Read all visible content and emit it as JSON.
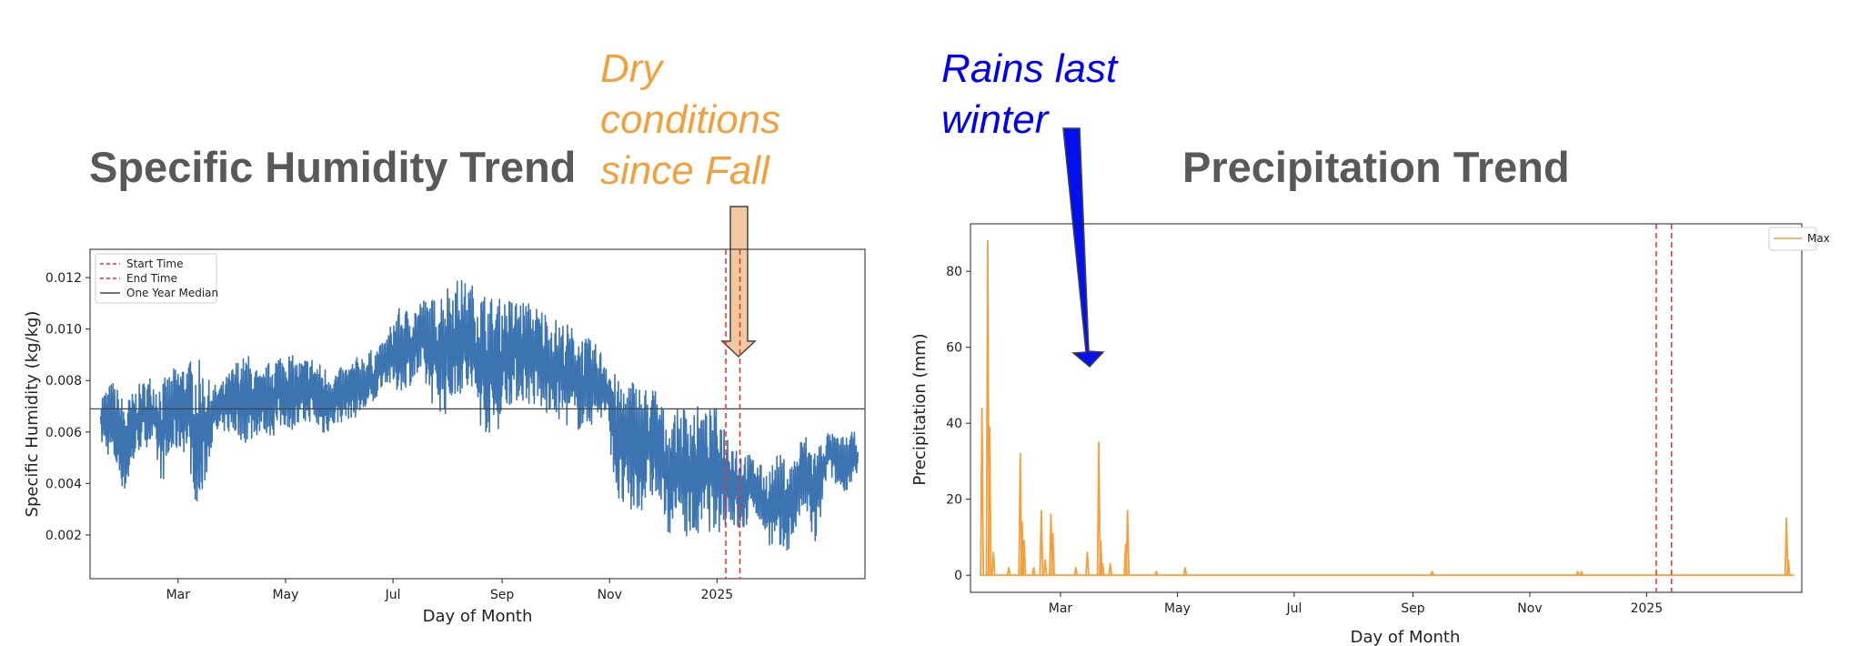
{
  "titles": {
    "left": "Specific Humidity Trend",
    "right": "Precipitation Trend"
  },
  "annotations": {
    "dry": [
      "Dry",
      "conditions",
      "since Fall"
    ],
    "rain": [
      "Rains last",
      "winter"
    ],
    "dry_color": "#f0a03c",
    "rain_color": "#0000ee"
  },
  "chart_data": [
    {
      "type": "line",
      "xlabel": "Day of Month",
      "ylabel": "Specific Humidity (kg/kg)",
      "x_range": [
        "2024-01-11",
        "2025-03-26"
      ],
      "ylim": [
        0.0003,
        0.0131
      ],
      "x_ticks": [
        {
          "date": "2024-03-01",
          "label": "Mar"
        },
        {
          "date": "2024-05-01",
          "label": "May"
        },
        {
          "date": "2024-07-01",
          "label": "Jul"
        },
        {
          "date": "2024-09-01",
          "label": "Sep"
        },
        {
          "date": "2024-11-01",
          "label": "Nov"
        },
        {
          "date": "2025-01-01",
          "label": "2025"
        }
      ],
      "y_ticks": [
        0.002,
        0.004,
        0.006,
        0.008,
        0.01,
        0.012
      ],
      "y_tick_labels": [
        "0.002",
        "0.004",
        "0.006",
        "0.008",
        "0.010",
        "0.012"
      ],
      "legend": {
        "placement": "upper-left",
        "entries": [
          {
            "label": "Start Time",
            "style": "dashed",
            "color": "#e8302a"
          },
          {
            "label": "End Time",
            "style": "dashed",
            "color": "#e8302a"
          },
          {
            "label": "One Year Median",
            "style": "solid",
            "color": "#444444"
          }
        ]
      },
      "median": 0.0069,
      "start_time": "2025-01-06",
      "end_time": "2025-01-14",
      "series": [
        {
          "color": "#3b74b0",
          "x": [
            "2024-01-17",
            "2024-01-24",
            "2024-01-31",
            "2024-02-07",
            "2024-02-14",
            "2024-02-21",
            "2024-02-28",
            "2024-03-06",
            "2024-03-13",
            "2024-03-20",
            "2024-03-27",
            "2024-04-03",
            "2024-04-10",
            "2024-04-17",
            "2024-04-24",
            "2024-05-01",
            "2024-05-08",
            "2024-05-15",
            "2024-05-22",
            "2024-05-29",
            "2024-06-05",
            "2024-06-12",
            "2024-06-19",
            "2024-06-26",
            "2024-07-03",
            "2024-07-10",
            "2024-07-17",
            "2024-07-24",
            "2024-07-31",
            "2024-08-07",
            "2024-08-14",
            "2024-08-21",
            "2024-08-28",
            "2024-09-04",
            "2024-09-11",
            "2024-09-18",
            "2024-09-25",
            "2024-10-02",
            "2024-10-09",
            "2024-10-16",
            "2024-10-23",
            "2024-10-30",
            "2024-11-06",
            "2024-11-13",
            "2024-11-20",
            "2024-11-27",
            "2024-12-04",
            "2024-12-11",
            "2024-12-18",
            "2024-12-25",
            "2025-01-01",
            "2025-01-08",
            "2025-01-15",
            "2025-01-22",
            "2025-01-29",
            "2025-02-05",
            "2025-02-12",
            "2025-02-19",
            "2025-02-26",
            "2025-03-05",
            "2025-03-12",
            "2025-03-19"
          ],
          "lo": [
            0.0055,
            0.0048,
            0.0035,
            0.0052,
            0.0055,
            0.004,
            0.0052,
            0.0052,
            0.0025,
            0.0055,
            0.006,
            0.0058,
            0.0055,
            0.006,
            0.0058,
            0.0062,
            0.006,
            0.0064,
            0.0058,
            0.0062,
            0.0065,
            0.0066,
            0.0068,
            0.008,
            0.0075,
            0.0078,
            0.008,
            0.007,
            0.0066,
            0.0075,
            0.0072,
            0.006,
            0.0058,
            0.007,
            0.0072,
            0.007,
            0.0066,
            0.0065,
            0.0062,
            0.006,
            0.0063,
            0.0065,
            0.003,
            0.0025,
            0.003,
            0.0035,
            0.002,
            0.0025,
            0.0015,
            0.0022,
            0.002,
            0.0025,
            0.0018,
            0.003,
            0.0018,
            0.001,
            0.0015,
            0.003,
            0.0013,
            0.0045,
            0.0035,
            0.004
          ],
          "hi": [
            0.0075,
            0.008,
            0.0072,
            0.0078,
            0.0082,
            0.008,
            0.0085,
            0.0088,
            0.0088,
            0.0078,
            0.008,
            0.0088,
            0.009,
            0.0082,
            0.009,
            0.0092,
            0.0088,
            0.009,
            0.0086,
            0.0084,
            0.0086,
            0.009,
            0.0092,
            0.0095,
            0.0108,
            0.0108,
            0.0112,
            0.0112,
            0.0118,
            0.012,
            0.0118,
            0.0115,
            0.0112,
            0.0112,
            0.0112,
            0.011,
            0.0108,
            0.0104,
            0.0102,
            0.0098,
            0.0095,
            0.009,
            0.008,
            0.0082,
            0.0078,
            0.0078,
            0.0065,
            0.007,
            0.0072,
            0.0068,
            0.007,
            0.006,
            0.0054,
            0.005,
            0.0045,
            0.0052,
            0.0048,
            0.006,
            0.0055,
            0.006,
            0.0058,
            0.006
          ]
        }
      ]
    },
    {
      "type": "line",
      "xlabel": "Day of Month",
      "ylabel": "Precipitation (mm)",
      "x_range": [
        "2024-01-14",
        "2025-03-23"
      ],
      "ylim": [
        -4.5,
        92.5
      ],
      "x_ticks": [
        {
          "date": "2024-03-01",
          "label": "Mar"
        },
        {
          "date": "2024-05-01",
          "label": "May"
        },
        {
          "date": "2024-07-01",
          "label": "Jul"
        },
        {
          "date": "2024-09-01",
          "label": "Sep"
        },
        {
          "date": "2024-11-01",
          "label": "Nov"
        },
        {
          "date": "2025-01-01",
          "label": "2025"
        }
      ],
      "y_ticks": [
        0,
        20,
        40,
        60,
        80
      ],
      "y_tick_labels": [
        "0",
        "20",
        "40",
        "60",
        "80"
      ],
      "legend": {
        "placement": "upper-right",
        "entries": [
          {
            "label": "Max",
            "style": "solid",
            "color": "#f0a03c"
          }
        ]
      },
      "start_time": "2025-01-06",
      "end_time": "2025-01-14",
      "spikes": [
        {
          "date": "2024-01-20",
          "value": 44
        },
        {
          "date": "2024-01-23",
          "value": 88
        },
        {
          "date": "2024-01-24",
          "value": 39
        },
        {
          "date": "2024-01-26",
          "value": 6
        },
        {
          "date": "2024-02-03",
          "value": 2
        },
        {
          "date": "2024-02-09",
          "value": 32
        },
        {
          "date": "2024-02-10",
          "value": 14
        },
        {
          "date": "2024-02-11",
          "value": 9
        },
        {
          "date": "2024-02-16",
          "value": 2
        },
        {
          "date": "2024-02-20",
          "value": 17
        },
        {
          "date": "2024-02-22",
          "value": 4
        },
        {
          "date": "2024-02-25",
          "value": 16
        },
        {
          "date": "2024-02-26",
          "value": 11
        },
        {
          "date": "2024-03-09",
          "value": 2
        },
        {
          "date": "2024-03-15",
          "value": 6
        },
        {
          "date": "2024-03-21",
          "value": 35
        },
        {
          "date": "2024-03-22",
          "value": 9
        },
        {
          "date": "2024-03-23",
          "value": 3
        },
        {
          "date": "2024-03-27",
          "value": 3
        },
        {
          "date": "2024-04-04",
          "value": 8
        },
        {
          "date": "2024-04-05",
          "value": 17
        },
        {
          "date": "2024-04-20",
          "value": 1
        },
        {
          "date": "2024-05-05",
          "value": 2
        },
        {
          "date": "2024-09-11",
          "value": 1
        },
        {
          "date": "2024-11-26",
          "value": 1
        },
        {
          "date": "2024-11-28",
          "value": 1
        },
        {
          "date": "2025-03-15",
          "value": 15
        },
        {
          "date": "2025-03-16",
          "value": 4
        }
      ]
    }
  ]
}
